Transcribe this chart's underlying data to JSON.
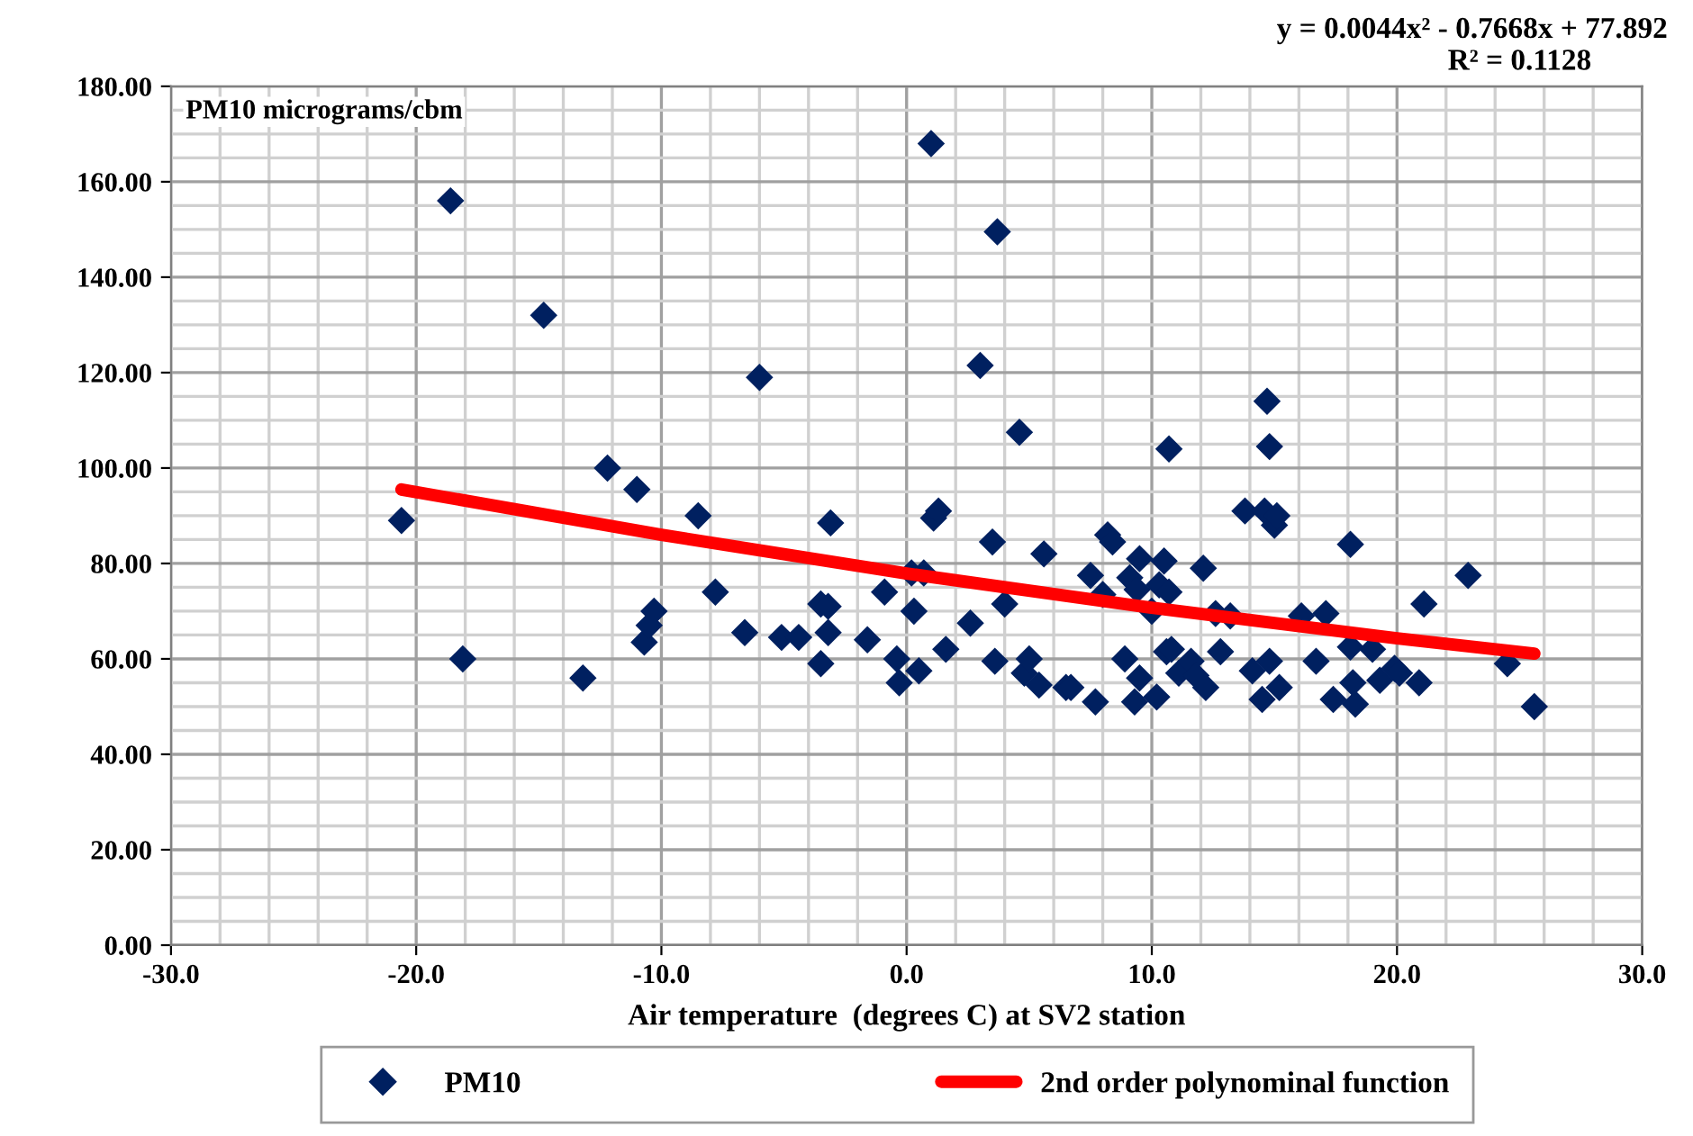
{
  "chart_data": {
    "type": "scatter",
    "xlabel": "Air temperature  (degrees C) at SV2 station",
    "ylabel": "PM10 micrograms/cbm",
    "annotations": [
      "y = 0.0044x² - 0.7668x + 77.892",
      "R² = 0.1128"
    ],
    "xlim": [
      -30,
      30
    ],
    "xticks": [
      {
        "value": -30,
        "label": "-30.0"
      },
      {
        "value": -20,
        "label": "-20.0"
      },
      {
        "value": -10,
        "label": "-10.0"
      },
      {
        "value": 0,
        "label": "0.0"
      },
      {
        "value": 10,
        "label": "10.0"
      },
      {
        "value": 20,
        "label": "20.0"
      },
      {
        "value": 30,
        "label": "30.0"
      }
    ],
    "ylim": [
      0,
      180
    ],
    "yticks": [
      {
        "value": 0,
        "label": "0.00"
      },
      {
        "value": 20,
        "label": "20.00"
      },
      {
        "value": 40,
        "label": "40.00"
      },
      {
        "value": 60,
        "label": "60.00"
      },
      {
        "value": 80,
        "label": "80.00"
      },
      {
        "value": 100,
        "label": "100.00"
      },
      {
        "value": 120,
        "label": "120.00"
      },
      {
        "value": 140,
        "label": "140.00"
      },
      {
        "value": 160,
        "label": "160.00"
      },
      {
        "value": 180,
        "label": "180.00"
      }
    ],
    "grid": true,
    "legend": "bottom",
    "series": [
      {
        "name": "PM10",
        "marker": "diamond",
        "color": "#002060",
        "x": [
          -20.6,
          -18.6,
          -18.1,
          -14.8,
          -13.2,
          -12.2,
          -11,
          -10.7,
          -10.5,
          -10.3,
          -8.5,
          -7.8,
          -6.6,
          -6,
          -5.1,
          -4.4,
          -3.5,
          -3.5,
          -3.2,
          -3.2,
          -3.1,
          -1.6,
          -0.9,
          -0.4,
          -0.3,
          0.2,
          0.3,
          0.5,
          0.7,
          1,
          1.1,
          1.3,
          1.6,
          2.6,
          3,
          3.5,
          3.6,
          3.7,
          4,
          4.6,
          4.8,
          5,
          5.4,
          5.6,
          6.5,
          6.7,
          7.5,
          7.7,
          8,
          8.2,
          8.4,
          8.9,
          9.1,
          9.3,
          9.4,
          9.5,
          9.5,
          10,
          10.2,
          10.3,
          10.5,
          10.6,
          10.7,
          10.7,
          10.8,
          11.1,
          11.6,
          11.8,
          12.1,
          12.2,
          12.6,
          12.8,
          13.2,
          13.8,
          14.1,
          14.5,
          14.7,
          14.8,
          14.6,
          14.8,
          15,
          15.1,
          15.2,
          16.1,
          16.7,
          17.1,
          17.4,
          18.1,
          18.1,
          18.2,
          18.3,
          19,
          19.3,
          19.9,
          20.1,
          20.9,
          21.1,
          22.9,
          24.5,
          25.6
        ],
        "values": [
          89,
          156,
          60,
          132,
          56,
          100,
          95.5,
          63.5,
          67,
          70,
          90,
          74,
          65.5,
          119,
          64.5,
          64.5,
          71.5,
          59,
          71,
          65.5,
          88.5,
          64,
          74,
          60,
          55,
          78,
          70,
          57.5,
          78,
          168,
          89.5,
          91,
          62,
          67.5,
          121.5,
          84.5,
          59.5,
          149.5,
          71.5,
          107.5,
          57,
          60,
          54.5,
          82,
          54,
          54,
          77.5,
          51,
          73.5,
          86,
          84.5,
          60,
          77,
          51,
          74.5,
          81,
          56,
          70,
          52,
          75.5,
          80.5,
          61.5,
          104,
          74,
          62,
          57,
          59.5,
          56.5,
          79,
          54,
          69.5,
          61.5,
          69,
          91,
          57.5,
          51.5,
          114,
          104.5,
          91,
          59.5,
          88,
          90,
          54,
          69,
          59.5,
          69.5,
          51.5,
          84,
          62.5,
          55,
          50.5,
          62,
          55.5,
          58,
          57,
          55,
          71.5,
          77.5,
          59,
          50
        ]
      },
      {
        "name": "2nd order polynominal function",
        "type": "line",
        "marker": "none",
        "line_style": "solid",
        "color": "#ff0000",
        "x": [
          -20.6,
          -10,
          0,
          10,
          20,
          25.6
        ],
        "values": [
          95.5,
          86,
          77.9,
          70.7,
          64.3,
          61.1
        ]
      }
    ]
  }
}
